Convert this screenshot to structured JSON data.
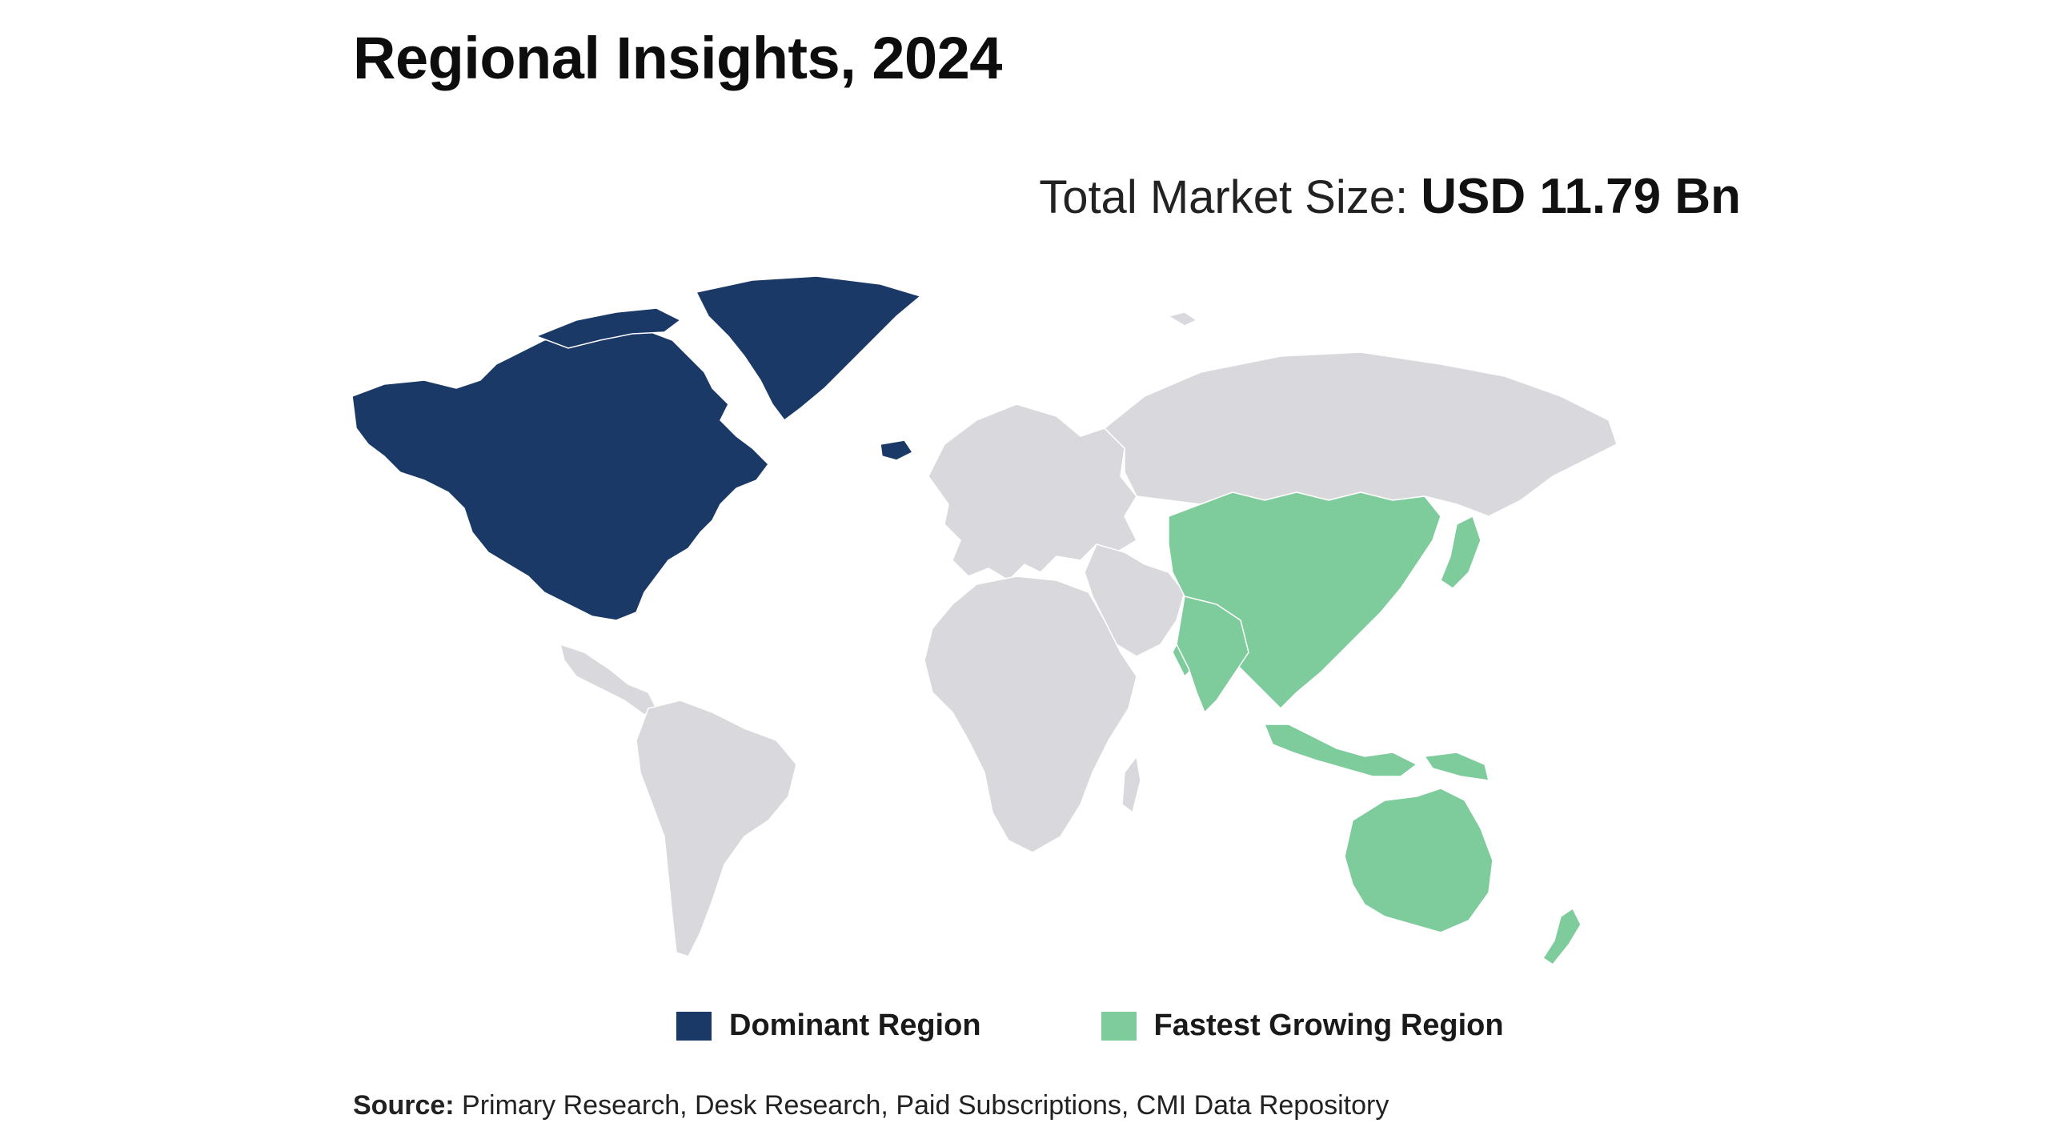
{
  "title": "Regional Insights, 2024",
  "market_size": {
    "label": "Total Market Size:",
    "value": "USD 11.79 Bn"
  },
  "legend": [
    {
      "label": "Dominant Region",
      "color": "#1b3966"
    },
    {
      "label": "Fastest Growing Region",
      "color": "#7ecb9b"
    }
  ],
  "map": {
    "base_color": "#d9d8dc",
    "dominant_region": "North America",
    "fastest_growing_region": "Asia Pacific"
  },
  "source": {
    "label": "Source:",
    "text": "Primary Research, Desk Research, Paid Subscriptions, CMI Data Repository"
  }
}
